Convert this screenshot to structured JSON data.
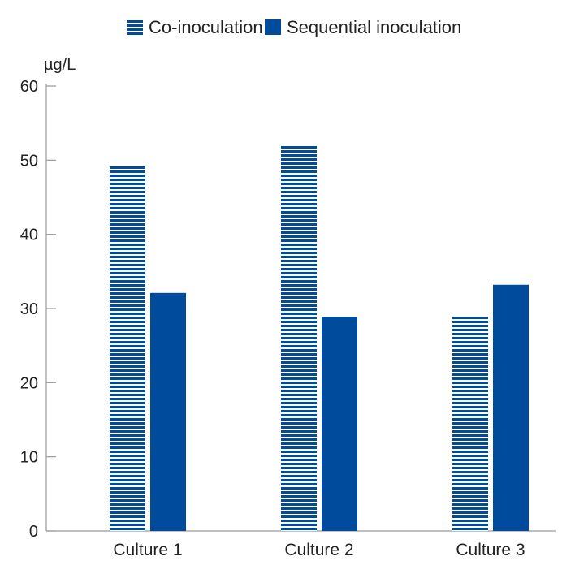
{
  "chart_data": {
    "type": "bar",
    "ylabel": "µg/L",
    "ylim": [
      0,
      60
    ],
    "yticks": [
      0,
      10,
      20,
      30,
      40,
      50,
      60
    ],
    "categories": [
      "Culture 1",
      "Culture 2",
      "Culture 3"
    ],
    "series": [
      {
        "name": "Co-inoculation",
        "values": [
          49.3,
          52.0,
          28.9
        ],
        "color": "#004b9b",
        "pattern": "horizontal-stripes"
      },
      {
        "name": "Sequential inoculation",
        "values": [
          32.1,
          28.9,
          33.2
        ],
        "color": "#004b9b",
        "pattern": "solid"
      }
    ],
    "legend": "top-center",
    "grid": false
  }
}
